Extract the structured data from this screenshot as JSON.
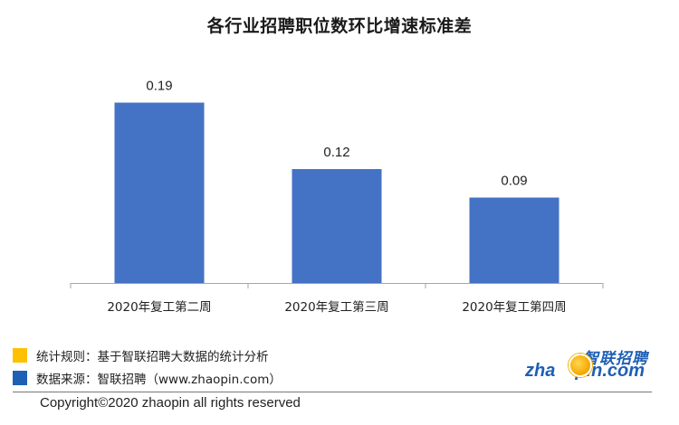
{
  "chart_data": {
    "type": "bar",
    "title": "各行业招聘职位数环比增速标准差",
    "categories": [
      "2020年复工第二周",
      "2020年复工第三周",
      "2020年复工第四周"
    ],
    "values": [
      0.19,
      0.12,
      0.09
    ],
    "value_labels": [
      "0.19",
      "0.12",
      "0.09"
    ],
    "ylim": [
      0,
      0.22
    ],
    "grid": false,
    "bar_color": "#4472c4"
  },
  "footer": {
    "rule_line": "统计规则：基于智联招聘大数据的统计分析",
    "source_line": "数据来源：智联招聘（www.zhaopin.com）",
    "copyright": "Copyright©2020 zhaopin all rights reserved",
    "rule_swatch_color": "#ffc000",
    "source_swatch_color": "#1f5fb4"
  },
  "logo": {
    "chinese": "智联招聘",
    "english_left": "zha",
    "english_right": "pin.com",
    "icon": "orange-dot-icon"
  }
}
